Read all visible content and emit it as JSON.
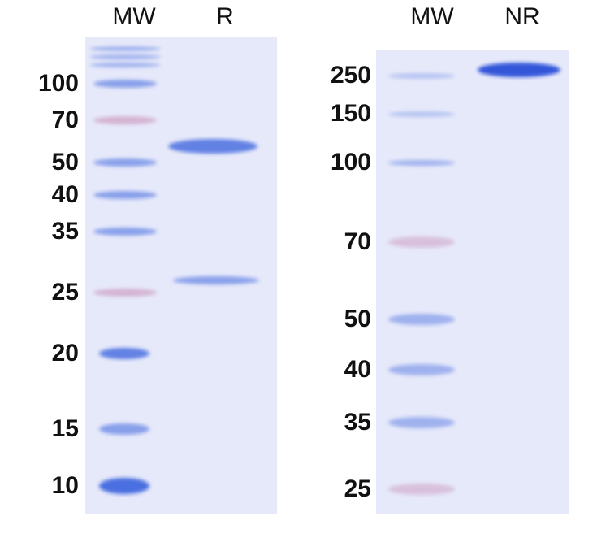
{
  "left_gel": {
    "lanes": [
      "MW",
      "R"
    ],
    "markers": [
      "100",
      "70",
      "50",
      "40",
      "35",
      "25",
      "20",
      "15",
      "10"
    ]
  },
  "right_gel": {
    "lanes": [
      "MW",
      "NR"
    ],
    "markers": [
      "250",
      "150",
      "100",
      "70",
      "50",
      "40",
      "35",
      "25"
    ]
  },
  "colors": {
    "gel": "#e6e9fa",
    "band_blue": "#4a6fe0",
    "band_pink": "#c890b8",
    "band_dark": "#2a4fd8"
  }
}
